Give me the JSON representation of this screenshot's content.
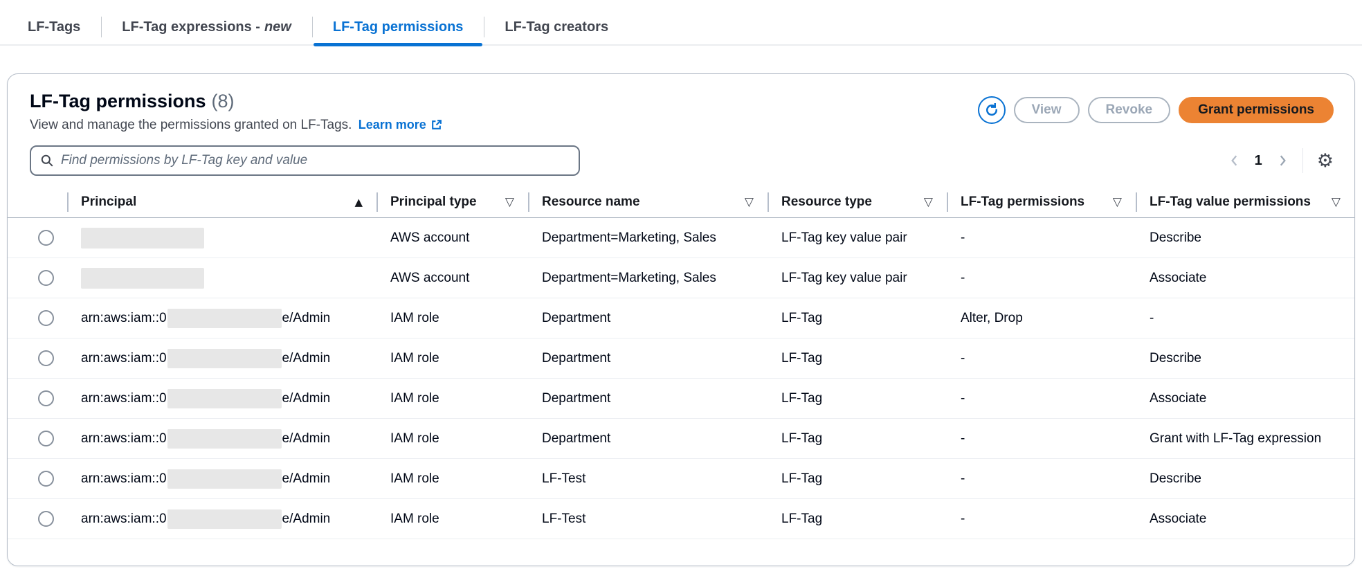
{
  "tabs": [
    {
      "label": "LF-Tags",
      "active": false
    },
    {
      "label": "LF-Tag expressions -",
      "badge": "new",
      "active": false
    },
    {
      "label": "LF-Tag permissions",
      "active": true
    },
    {
      "label": "LF-Tag creators",
      "active": false
    }
  ],
  "panel": {
    "title": "LF-Tag permissions",
    "count_display": "(8)",
    "description": "View and manage the permissions granted on LF-Tags.",
    "learn_more_label": "Learn more",
    "buttons": {
      "refresh_icon": "refresh-icon",
      "view": "View",
      "revoke": "Revoke",
      "grant": "Grant permissions"
    },
    "search": {
      "placeholder": "Find permissions by LF-Tag key and value",
      "value": "",
      "icon": "search-icon"
    },
    "pagination": {
      "prev_icon": "chevron-left-icon",
      "page": "1",
      "next_icon": "chevron-right-icon",
      "settings_icon": "gear-icon"
    }
  },
  "table": {
    "columns": [
      {
        "label": "Principal",
        "sort": "ascending"
      },
      {
        "label": "Principal type",
        "sort": "sortable"
      },
      {
        "label": "Resource name",
        "sort": "sortable"
      },
      {
        "label": "Resource type",
        "sort": "sortable"
      },
      {
        "label": "LF-Tag permissions",
        "sort": "sortable"
      },
      {
        "label": "LF-Tag value permissions",
        "sort": "sortable"
      }
    ],
    "rows": [
      {
        "principal": {
          "prefix": "",
          "redacted": true,
          "suffix": ""
        },
        "principal_type": "AWS account",
        "resource_name": "Department=Marketing, Sales",
        "resource_type": "LF-Tag key value pair",
        "lf_tag_permissions": "-",
        "lf_tag_value_permissions": "Describe"
      },
      {
        "principal": {
          "prefix": "",
          "redacted": true,
          "suffix": ""
        },
        "principal_type": "AWS account",
        "resource_name": "Department=Marketing, Sales",
        "resource_type": "LF-Tag key value pair",
        "lf_tag_permissions": "-",
        "lf_tag_value_permissions": "Associate"
      },
      {
        "principal": {
          "prefix": "arn:aws:iam::0",
          "redacted": true,
          "suffix": "e/Admin"
        },
        "principal_type": "IAM role",
        "resource_name": "Department",
        "resource_type": "LF-Tag",
        "lf_tag_permissions": "Alter, Drop",
        "lf_tag_value_permissions": "-"
      },
      {
        "principal": {
          "prefix": "arn:aws:iam::0",
          "redacted": true,
          "suffix": "e/Admin"
        },
        "principal_type": "IAM role",
        "resource_name": "Department",
        "resource_type": "LF-Tag",
        "lf_tag_permissions": "-",
        "lf_tag_value_permissions": "Describe"
      },
      {
        "principal": {
          "prefix": "arn:aws:iam::0",
          "redacted": true,
          "suffix": "e/Admin"
        },
        "principal_type": "IAM role",
        "resource_name": "Department",
        "resource_type": "LF-Tag",
        "lf_tag_permissions": "-",
        "lf_tag_value_permissions": "Associate"
      },
      {
        "principal": {
          "prefix": "arn:aws:iam::0",
          "redacted": true,
          "suffix": "e/Admin"
        },
        "principal_type": "IAM role",
        "resource_name": "Department",
        "resource_type": "LF-Tag",
        "lf_tag_permissions": "-",
        "lf_tag_value_permissions": "Grant with LF-Tag expression"
      },
      {
        "principal": {
          "prefix": "arn:aws:iam::0",
          "redacted": true,
          "suffix": "e/Admin"
        },
        "principal_type": "IAM role",
        "resource_name": "LF-Test",
        "resource_type": "LF-Tag",
        "lf_tag_permissions": "-",
        "lf_tag_value_permissions": "Describe"
      },
      {
        "principal": {
          "prefix": "arn:aws:iam::0",
          "redacted": true,
          "suffix": "e/Admin"
        },
        "principal_type": "IAM role",
        "resource_name": "LF-Test",
        "resource_type": "LF-Tag",
        "lf_tag_permissions": "-",
        "lf_tag_value_permissions": "Associate"
      }
    ]
  },
  "colors": {
    "accent_blue": "#0972d3",
    "primary_orange": "#ec8333",
    "disabled_gray": "#9ba7b6",
    "text_dark": "#000716",
    "divider_light": "#ebeef2",
    "redaction_gray": "#e7e7e7"
  }
}
